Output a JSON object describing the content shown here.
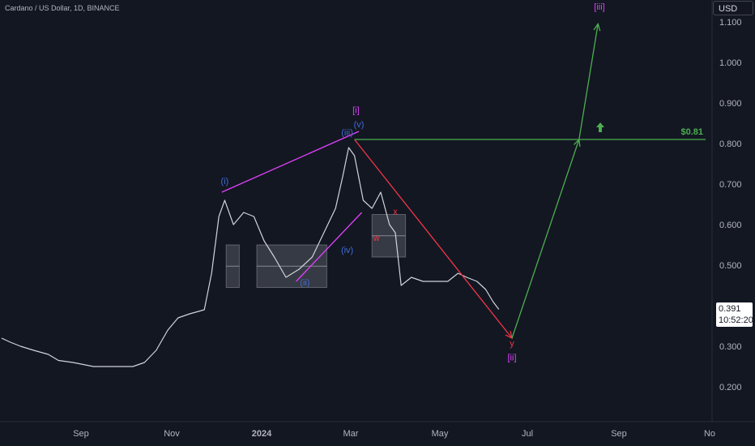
{
  "header": {
    "title": "Cardano / US Dollar, 1D, BINANCE"
  },
  "currency": "USD",
  "current_price": {
    "value": "0.391",
    "countdown": "10:52:20"
  },
  "colors": {
    "background": "#131722",
    "text": "#b2b5be",
    "green": "#4caf50",
    "red": "#f23645",
    "magenta": "#e040fb",
    "blue": "#3f6bd8",
    "zone": "#787b86"
  },
  "chart_data": {
    "type": "line",
    "x_ticks": [
      "Sep",
      "Nov",
      "2024",
      "Mar",
      "May",
      "Jul",
      "Sep",
      "No"
    ],
    "y_ticks": [
      "1.100",
      "1.000",
      "0.900",
      "0.800",
      "0.700",
      "0.600",
      "0.500",
      "0.300",
      "0.200"
    ],
    "ylim": [
      0.14,
      1.16
    ],
    "price_series": {
      "name": "ADA/USD",
      "points": [
        [
          "2023-07-14",
          0.32
        ],
        [
          "2023-07-20",
          0.31
        ],
        [
          "2023-07-27",
          0.3
        ],
        [
          "2023-08-05",
          0.29
        ],
        [
          "2023-08-15",
          0.28
        ],
        [
          "2023-08-22",
          0.265
        ],
        [
          "2023-09-01",
          0.26
        ],
        [
          "2023-09-15",
          0.25
        ],
        [
          "2023-10-01",
          0.25
        ],
        [
          "2023-10-12",
          0.25
        ],
        [
          "2023-10-20",
          0.26
        ],
        [
          "2023-10-28",
          0.29
        ],
        [
          "2023-11-05",
          0.34
        ],
        [
          "2023-11-12",
          0.37
        ],
        [
          "2023-11-20",
          0.38
        ],
        [
          "2023-11-30",
          0.39
        ],
        [
          "2023-12-05",
          0.48
        ],
        [
          "2023-12-10",
          0.62
        ],
        [
          "2023-12-14",
          0.66
        ],
        [
          "2023-12-20",
          0.6
        ],
        [
          "2023-12-27",
          0.63
        ],
        [
          "2024-01-03",
          0.62
        ],
        [
          "2024-01-10",
          0.56
        ],
        [
          "2024-01-17",
          0.52
        ],
        [
          "2024-01-25",
          0.47
        ],
        [
          "2024-02-03",
          0.49
        ],
        [
          "2024-02-12",
          0.52
        ],
        [
          "2024-02-20",
          0.58
        ],
        [
          "2024-02-28",
          0.64
        ],
        [
          "2024-03-04",
          0.72
        ],
        [
          "2024-03-08",
          0.79
        ],
        [
          "2024-03-12",
          0.77
        ],
        [
          "2024-03-18",
          0.66
        ],
        [
          "2024-03-24",
          0.64
        ],
        [
          "2024-03-30",
          0.68
        ],
        [
          "2024-04-05",
          0.6
        ],
        [
          "2024-04-09",
          0.58
        ],
        [
          "2024-04-13",
          0.45
        ],
        [
          "2024-04-20",
          0.47
        ],
        [
          "2024-04-28",
          0.46
        ],
        [
          "2024-05-08",
          0.46
        ],
        [
          "2024-05-15",
          0.46
        ],
        [
          "2024-05-22",
          0.48
        ],
        [
          "2024-05-28",
          0.47
        ],
        [
          "2024-06-04",
          0.46
        ],
        [
          "2024-06-10",
          0.44
        ],
        [
          "2024-06-15",
          0.41
        ],
        [
          "2024-06-19",
          0.391
        ]
      ]
    },
    "trendlines": [
      {
        "color": "#e040fb",
        "points": [
          [
            "2023-12-12",
            0.68
          ],
          [
            "2024-03-15",
            0.83
          ]
        ]
      },
      {
        "color": "#e040fb",
        "points": [
          [
            "2024-02-01",
            0.46
          ],
          [
            "2024-03-17",
            0.63
          ]
        ]
      },
      {
        "color": "#f23645",
        "points": [
          [
            "2024-03-12",
            0.81
          ],
          [
            "2024-06-28",
            0.32
          ]
        ]
      },
      {
        "color": "#4caf50",
        "points": [
          [
            "2024-06-28",
            0.32
          ],
          [
            "2024-08-13",
            0.81
          ],
          [
            "2024-08-26",
            1.095
          ]
        ]
      }
    ],
    "horizontal_levels": [
      {
        "value": 0.81,
        "label": "$0.81",
        "color": "#4caf50",
        "from": "2024-03-12"
      }
    ],
    "zones": [
      {
        "from": "2023-12-15",
        "to": "2023-12-24",
        "low": 0.445,
        "high": 0.55
      },
      {
        "from": "2024-01-05",
        "to": "2024-02-22",
        "low": 0.445,
        "high": 0.55
      },
      {
        "from": "2024-03-24",
        "to": "2024-04-16",
        "low": 0.52,
        "high": 0.625
      }
    ],
    "annotations": [
      {
        "text": "[i]",
        "date": "2024-03-13",
        "value": 0.875,
        "color": "#e040fb"
      },
      {
        "text": "(v)",
        "date": "2024-03-15",
        "value": 0.84,
        "color": "#3f6bd8"
      },
      {
        "text": "(iii)",
        "date": "2024-03-07",
        "value": 0.82,
        "color": "#3f6bd8"
      },
      {
        "text": "(i)",
        "date": "2023-12-14",
        "value": 0.7,
        "color": "#3f6bd8"
      },
      {
        "text": "(iv)",
        "date": "2024-03-07",
        "value": 0.53,
        "color": "#3f6bd8"
      },
      {
        "text": "(ii)",
        "date": "2024-02-07",
        "value": 0.45,
        "color": "#3f6bd8"
      },
      {
        "text": "w",
        "date": "2024-03-27",
        "value": 0.56,
        "color": "#f23645"
      },
      {
        "text": "x",
        "date": "2024-04-09",
        "value": 0.625,
        "color": "#f23645"
      },
      {
        "text": "y",
        "date": "2024-06-28",
        "value": 0.3,
        "color": "#f23645"
      },
      {
        "text": "[ii]",
        "date": "2024-06-28",
        "value": 0.265,
        "color": "#e040fb"
      },
      {
        "text": "[iii]",
        "date": "2024-08-27",
        "value": 1.13,
        "color": "#e040fb"
      }
    ]
  }
}
